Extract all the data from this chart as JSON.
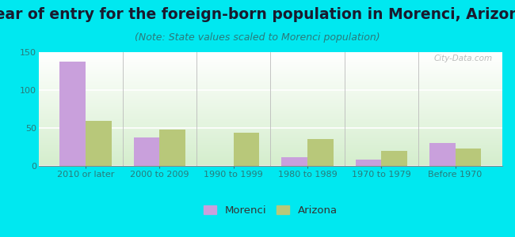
{
  "title": "Year of entry for the foreign-born population in Morenci, Arizona",
  "subtitle": "(Note: State values scaled to Morenci population)",
  "categories": [
    "2010 or later",
    "2000 to 2009",
    "1990 to 1999",
    "1980 to 1989",
    "1970 to 1979",
    "Before 1970"
  ],
  "morenci_values": [
    138,
    38,
    0,
    11,
    8,
    30
  ],
  "arizona_values": [
    59,
    48,
    44,
    35,
    20,
    23
  ],
  "morenci_color": "#c9a0dc",
  "arizona_color": "#b8c87a",
  "background_outer": "#00e8f0",
  "ylim": [
    0,
    150
  ],
  "yticks": [
    0,
    50,
    100,
    150
  ],
  "bar_width": 0.35,
  "title_fontsize": 13.5,
  "subtitle_fontsize": 9,
  "tick_fontsize": 8,
  "legend_fontsize": 9.5,
  "watermark": "City-Data.com",
  "title_color": "#1a1a2e",
  "subtitle_color": "#2a7a7a",
  "tick_color": "#2a7a7a"
}
